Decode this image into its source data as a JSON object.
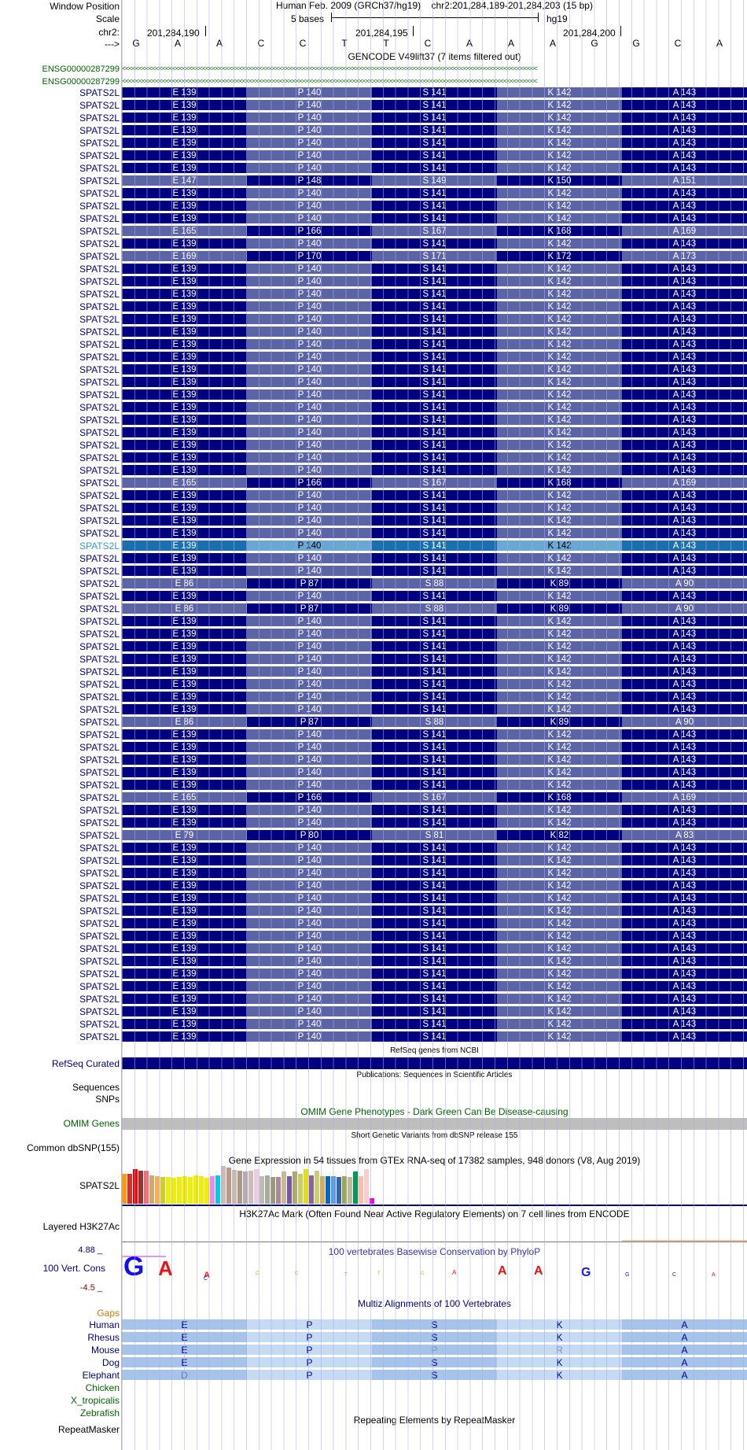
{
  "header": {
    "window_label": "Window Position",
    "scale_label": "Scale",
    "chr_label": "chr2:",
    "strand_label": "--->",
    "assembly": "Human Feb. 2009 (GRCh37/hg19)",
    "position": "chr2:201,284,189-201,284,203 (15 bp)",
    "scale_text": "5 bases",
    "db": "hg19",
    "ticks": [
      "201,284,190",
      "201,284,195",
      "201,284,200"
    ],
    "bases": [
      "G",
      "A",
      "A",
      "C",
      "C",
      "T",
      "T",
      "C",
      "A",
      "A",
      "A",
      "G",
      "G",
      "C",
      "A"
    ]
  },
  "gencode": {
    "title": "GENCODE V49lift37 (7 items filtered out)",
    "ens": [
      "ENSG00000287299",
      "ENSG00000287299"
    ],
    "arrows": "<<<<<<<<<<<<<<<<<<<<<<<<<<<<<<<<<<<<<<<<<<<<<<<<<<<<<<<<<<<<<<<<<<<<<<<<<<<<<<<<<<<<<<<<<<<<<<<<<<<<<<<<<<<<<<<<<<<<<<<<<<<<"
  },
  "gene_name": "SPATS2L",
  "highlight_index": 36,
  "transcripts": [
    [
      "E 139",
      "P 140",
      "S 141",
      "K 142",
      "A 143"
    ],
    [
      "E 139",
      "P 140",
      "S 141",
      "K 142",
      "A 143"
    ],
    [
      "E 139",
      "P 140",
      "S 141",
      "K 142",
      "A 143"
    ],
    [
      "E 139",
      "P 140",
      "S 141",
      "K 142",
      "A 143"
    ],
    [
      "E 139",
      "P 140",
      "S 141",
      "K 142",
      "A 143"
    ],
    [
      "E 139",
      "P 140",
      "S 141",
      "K 142",
      "A 143"
    ],
    [
      "E 139",
      "P 140",
      "S 141",
      "K 142",
      "A 143"
    ],
    [
      "E 147",
      "P 148",
      "S 149",
      "K 150",
      "A 151"
    ],
    [
      "E 139",
      "P 140",
      "S 141",
      "K 142",
      "A 143"
    ],
    [
      "E 139",
      "P 140",
      "S 141",
      "K 142",
      "A 143"
    ],
    [
      "E 139",
      "P 140",
      "S 141",
      "K 142",
      "A 143"
    ],
    [
      "E 165",
      "P 166",
      "S 167",
      "K 168",
      "A 169"
    ],
    [
      "E 139",
      "P 140",
      "S 141",
      "K 142",
      "A 143"
    ],
    [
      "E 169",
      "P 170",
      "S 171",
      "K 172",
      "A 173"
    ],
    [
      "E 139",
      "P 140",
      "S 141",
      "K 142",
      "A 143"
    ],
    [
      "E 139",
      "P 140",
      "S 141",
      "K 142",
      "A 143"
    ],
    [
      "E 139",
      "P 140",
      "S 141",
      "K 142",
      "A 143"
    ],
    [
      "E 139",
      "P 140",
      "S 141",
      "K 142",
      "A 143"
    ],
    [
      "E 139",
      "P 140",
      "S 141",
      "K 142",
      "A 143"
    ],
    [
      "E 139",
      "P 140",
      "S 141",
      "K 142",
      "A 143"
    ],
    [
      "E 139",
      "P 140",
      "S 141",
      "K 142",
      "A 143"
    ],
    [
      "E 139",
      "P 140",
      "S 141",
      "K 142",
      "A 143"
    ],
    [
      "E 139",
      "P 140",
      "S 141",
      "K 142",
      "A 143"
    ],
    [
      "E 139",
      "P 140",
      "S 141",
      "K 142",
      "A 143"
    ],
    [
      "E 139",
      "P 140",
      "S 141",
      "K 142",
      "A 143"
    ],
    [
      "E 139",
      "P 140",
      "S 141",
      "K 142",
      "A 143"
    ],
    [
      "E 139",
      "P 140",
      "S 141",
      "K 142",
      "A 143"
    ],
    [
      "E 139",
      "P 140",
      "S 141",
      "K 142",
      "A 143"
    ],
    [
      "E 139",
      "P 140",
      "S 141",
      "K 142",
      "A 143"
    ],
    [
      "E 139",
      "P 140",
      "S 141",
      "K 142",
      "A 143"
    ],
    [
      "E 139",
      "P 140",
      "S 141",
      "K 142",
      "A 143"
    ],
    [
      "E 165",
      "P 166",
      "S 167",
      "K 168",
      "A 169"
    ],
    [
      "E 139",
      "P 140",
      "S 141",
      "K 142",
      "A 143"
    ],
    [
      "E 139",
      "P 140",
      "S 141",
      "K 142",
      "A 143"
    ],
    [
      "E 139",
      "P 140",
      "S 141",
      "K 142",
      "A 143"
    ],
    [
      "E 139",
      "P 140",
      "S 141",
      "K 142",
      "A 143"
    ],
    [
      "E 139",
      "P 140",
      "S 141",
      "K 142",
      "A 143"
    ],
    [
      "E 139",
      "P 140",
      "S 141",
      "K 142",
      "A 143"
    ],
    [
      "E 139",
      "P 140",
      "S 141",
      "K 142",
      "A 143"
    ],
    [
      "E 86",
      "P 87",
      "S 88",
      "K 89",
      "A 90"
    ],
    [
      "E 139",
      "P 140",
      "S 141",
      "K 142",
      "A 143"
    ],
    [
      "E 86",
      "P 87",
      "S 88",
      "K 89",
      "A 90"
    ],
    [
      "E 139",
      "P 140",
      "S 141",
      "K 142",
      "A 143"
    ],
    [
      "E 139",
      "P 140",
      "S 141",
      "K 142",
      "A 143"
    ],
    [
      "E 139",
      "P 140",
      "S 141",
      "K 142",
      "A 143"
    ],
    [
      "E 139",
      "P 140",
      "S 141",
      "K 142",
      "A 143"
    ],
    [
      "E 139",
      "P 140",
      "S 141",
      "K 142",
      "A 143"
    ],
    [
      "E 139",
      "P 140",
      "S 141",
      "K 142",
      "A 143"
    ],
    [
      "E 139",
      "P 140",
      "S 141",
      "K 142",
      "A 143"
    ],
    [
      "E 139",
      "P 140",
      "S 141",
      "K 142",
      "A 143"
    ],
    [
      "E 86",
      "P 87",
      "S 88",
      "K 89",
      "A 90"
    ],
    [
      "E 139",
      "P 140",
      "S 141",
      "K 142",
      "A 143"
    ],
    [
      "E 139",
      "P 140",
      "S 141",
      "K 142",
      "A 143"
    ],
    [
      "E 139",
      "P 140",
      "S 141",
      "K 142",
      "A 143"
    ],
    [
      "E 139",
      "P 140",
      "S 141",
      "K 142",
      "A 143"
    ],
    [
      "E 139",
      "P 140",
      "S 141",
      "K 142",
      "A 143"
    ],
    [
      "E 165",
      "P 166",
      "S 167",
      "K 168",
      "A 169"
    ],
    [
      "E 139",
      "P 140",
      "S 141",
      "K 142",
      "A 143"
    ],
    [
      "E 139",
      "P 140",
      "S 141",
      "K 142",
      "A 143"
    ],
    [
      "E 79",
      "P 80",
      "S 81",
      "K 82",
      "A 83"
    ],
    [
      "E 139",
      "P 140",
      "S 141",
      "K 142",
      "A 143"
    ],
    [
      "E 139",
      "P 140",
      "S 141",
      "K 142",
      "A 143"
    ],
    [
      "E 139",
      "P 140",
      "S 141",
      "K 142",
      "A 143"
    ],
    [
      "E 139",
      "P 140",
      "S 141",
      "K 142",
      "A 143"
    ],
    [
      "E 139",
      "P 140",
      "S 141",
      "K 142",
      "A 143"
    ],
    [
      "E 139",
      "P 140",
      "S 141",
      "K 142",
      "A 143"
    ],
    [
      "E 139",
      "P 140",
      "S 141",
      "K 142",
      "A 143"
    ],
    [
      "E 139",
      "P 140",
      "S 141",
      "K 142",
      "A 143"
    ],
    [
      "E 139",
      "P 140",
      "S 141",
      "K 142",
      "A 143"
    ],
    [
      "E 139",
      "P 140",
      "S 141",
      "K 142",
      "A 143"
    ],
    [
      "E 139",
      "P 140",
      "S 141",
      "K 142",
      "A 143"
    ],
    [
      "E 139",
      "P 140",
      "S 141",
      "K 142",
      "A 143"
    ],
    [
      "E 139",
      "P 140",
      "S 141",
      "K 142",
      "A 143"
    ],
    [
      "E 139",
      "P 140",
      "S 141",
      "K 142",
      "A 143"
    ],
    [
      "E 139",
      "P 140",
      "S 141",
      "K 142",
      "A 143"
    ],
    [
      "E 139",
      "P 140",
      "S 141",
      "K 142",
      "A 143"
    ]
  ],
  "colors": {
    "dark": "#000080",
    "light": "#5c64a8",
    "highlight_dark": "#1a6fb0",
    "highlight_light": "#6aa8d4",
    "omim": "#bebebe"
  },
  "tracks": {
    "refseq": {
      "label": "RefSeq Curated",
      "title": "RefSeq genes from NCBI"
    },
    "pubs": {
      "title": "Publications: Sequences in Scientific Articles",
      "label1": "Sequences",
      "label2": "SNPs"
    },
    "omim": {
      "title": "OMIM Gene Phenotypes - Dark Green Can Be Disease-causing",
      "label": "OMIM Genes"
    },
    "dbsnp": {
      "title": "Short Genetic Variants from dbSNP release 155",
      "label": "Common dbSNP(155)"
    },
    "gtex": {
      "title": "Gene Expression in 54 tissues from GTEx RNA-seq of 17382 samples, 948 donors (V8, Aug 2019)",
      "label": "SPATS2L",
      "colors": [
        "#ff9900",
        "#cc3333",
        "#ff0000",
        "#993333",
        "#ff6666",
        "#ccaa77",
        "#ffaa55",
        "#cccc33",
        "#eeee00",
        "#eeee00",
        "#eeee00",
        "#eeee00",
        "#eeee00",
        "#eeee00",
        "#eeee00",
        "#eeee00",
        "#ee88ee",
        "#00ccdd",
        "#ccbbbb",
        "#bb9988",
        "#ccbbaa",
        "#aa9988",
        "#bbaaaa",
        "#ccbbbb",
        "#eeccdd",
        "#bbbbbb",
        "#aaaa99",
        "#999977",
        "#aa8899",
        "#ccbb88",
        "#7755aa",
        "#aaaa66",
        "#cccc66",
        "#dddd22",
        "#886699",
        "#cccc77",
        "#ddaa44",
        "#0066cc",
        "#5599ee",
        "#3366aa",
        "#99aa44",
        "#bbbb99",
        "#009955",
        "#ffbbaa",
        "#ffcccc",
        "#ee00ee"
      ],
      "values": [
        0.8,
        0.8,
        0.92,
        0.88,
        0.88,
        0.75,
        0.72,
        0.7,
        0.7,
        0.68,
        0.7,
        0.72,
        0.7,
        0.74,
        0.72,
        0.68,
        0.72,
        0.75,
        1.0,
        0.95,
        0.9,
        0.88,
        0.85,
        0.88,
        0.92,
        0.72,
        0.74,
        0.7,
        0.7,
        0.85,
        0.72,
        0.85,
        0.8,
        0.92,
        0.75,
        0.88,
        0.72,
        0.72,
        0.72,
        0.7,
        0.72,
        0.7,
        0.85,
        0.72,
        0.92,
        0.15
      ]
    },
    "h3k27ac": {
      "title": "H3K27Ac Mark (Often Found Near Active Regulatory Elements) on 7 cell lines from ENCODE",
      "label": "Layered H3K27Ac"
    },
    "phylop": {
      "title": "100 vertebrates Basewise Conservation by PhyloP",
      "label": "100 Vert. Cons",
      "max": "4.88 _",
      "min": "-4.5 _"
    },
    "multiz": {
      "title": "Multiz Alignments of 100 Vertebrates",
      "gaps_label": "Gaps",
      "species": [
        {
          "name": "Human",
          "aa": [
            "E",
            "P",
            "S",
            "K",
            "A"
          ]
        },
        {
          "name": "Rhesus",
          "aa": [
            "E",
            "P",
            "S",
            "K",
            "A"
          ]
        },
        {
          "name": "Mouse",
          "aa": [
            "E",
            "P",
            "P",
            "R",
            "A"
          ]
        },
        {
          "name": "Dog",
          "aa": [
            "E",
            "P",
            "S",
            "K",
            "A"
          ]
        },
        {
          "name": "Elephant",
          "aa": [
            "D",
            "P",
            "S",
            "K",
            "A"
          ]
        }
      ],
      "no_align": [
        "Chicken",
        "X_tropicalis",
        "Zebrafish"
      ]
    },
    "rmsk": {
      "title": "Repeating Elements by RepeatMasker",
      "label": "RepeatMasker"
    }
  }
}
